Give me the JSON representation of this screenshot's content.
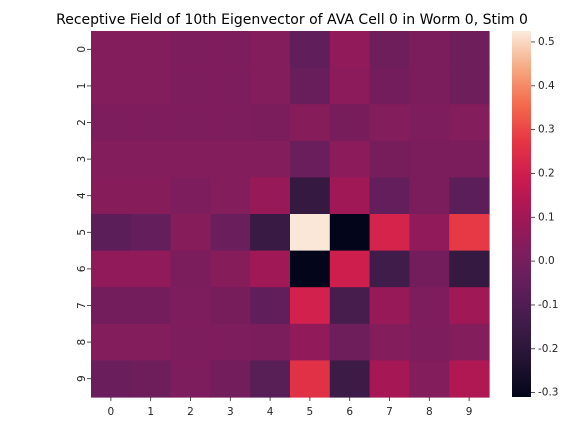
{
  "chart_data": {
    "type": "heatmap",
    "title": "Receptive Field of 10th Eigenvector of AVA Cell 0 in Worm 0, Stim 0",
    "xlabel": "",
    "ylabel": "",
    "x_categories": [
      "0",
      "1",
      "2",
      "3",
      "4",
      "5",
      "6",
      "7",
      "8",
      "9"
    ],
    "y_categories": [
      "0",
      "1",
      "2",
      "3",
      "4",
      "5",
      "6",
      "7",
      "8",
      "9"
    ],
    "values": [
      [
        0.03,
        0.03,
        0.02,
        0.02,
        0.03,
        -0.06,
        0.06,
        -0.02,
        0.01,
        -0.02
      ],
      [
        0.03,
        0.03,
        0.02,
        0.02,
        0.03,
        -0.04,
        0.05,
        -0.01,
        0.01,
        -0.02
      ],
      [
        0.02,
        0.02,
        0.02,
        0.02,
        0.01,
        0.04,
        0.0,
        0.03,
        0.02,
        0.03
      ],
      [
        0.03,
        0.03,
        0.03,
        0.03,
        0.03,
        -0.03,
        0.05,
        0.0,
        0.01,
        0.01
      ],
      [
        0.04,
        0.04,
        0.02,
        0.03,
        0.08,
        -0.17,
        0.1,
        -0.05,
        0.01,
        -0.07
      ],
      [
        -0.07,
        -0.05,
        0.04,
        -0.03,
        -0.16,
        0.52,
        -0.31,
        0.22,
        0.06,
        0.28
      ],
      [
        0.06,
        0.06,
        0.01,
        0.04,
        0.1,
        -0.31,
        0.2,
        -0.14,
        -0.01,
        -0.17
      ],
      [
        -0.01,
        -0.01,
        0.02,
        0.0,
        -0.06,
        0.21,
        -0.12,
        0.08,
        0.02,
        0.1
      ],
      [
        0.03,
        0.03,
        0.02,
        0.02,
        0.01,
        0.06,
        -0.02,
        0.03,
        0.02,
        0.03
      ],
      [
        -0.03,
        -0.02,
        0.02,
        -0.01,
        -0.08,
        0.26,
        -0.15,
        0.11,
        0.03,
        0.13
      ]
    ],
    "vmin": -0.31,
    "vmax": 0.525,
    "colorbar_ticks": [
      "-0.3",
      "-0.2",
      "-0.1",
      "0.0",
      "0.1",
      "0.2",
      "0.3",
      "0.4",
      "0.5"
    ],
    "colormap": "rocket",
    "grid": false,
    "colorbar_position": "right"
  }
}
